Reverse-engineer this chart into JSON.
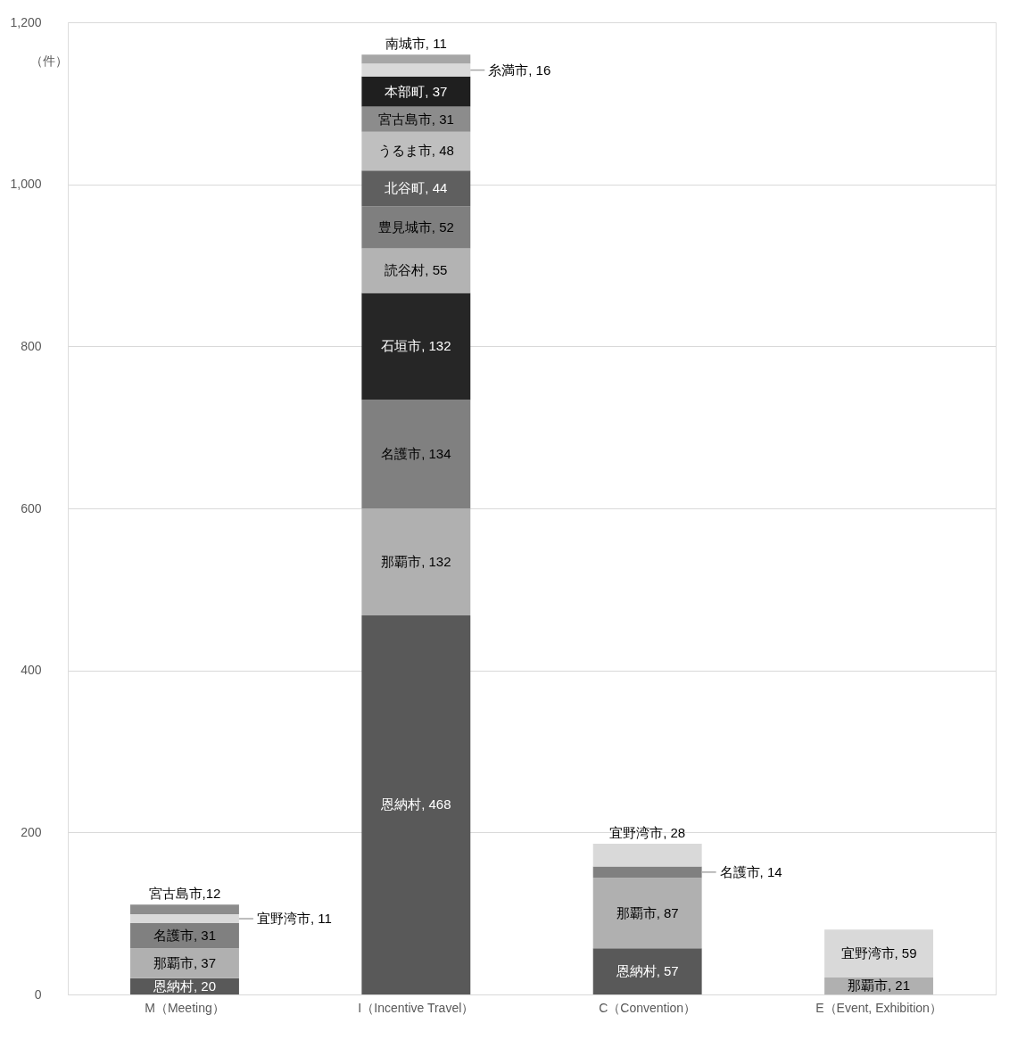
{
  "chart_data": {
    "type": "bar",
    "stacked": true,
    "ylabel": "（件）",
    "categories": [
      "M（Meeting）",
      "I（Incentive Travel）",
      "C（Convention）",
      "E（Event, Exhibition）"
    ],
    "ylim": [
      0,
      1200
    ],
    "yticks": [
      0,
      200,
      400,
      600,
      800,
      {
        "value": 1000,
        "label": "1,000"
      },
      {
        "value": 1200,
        "label": "1,200"
      }
    ],
    "grid": "y",
    "legend": false,
    "series": [
      {
        "name": "恩納村",
        "color": "#595959",
        "values": [
          20,
          468,
          57,
          null
        ],
        "value_labels": [
          ", 20",
          ", 468",
          ", 57",
          null
        ]
      },
      {
        "name": "那覇市",
        "color": "#b0b0b0",
        "values": [
          37,
          132,
          87,
          21
        ],
        "value_labels": [
          ", 37",
          ", 132",
          ", 87",
          ", 21"
        ]
      },
      {
        "name": "名護市",
        "color": "#808080",
        "values": [
          31,
          134,
          14,
          null
        ],
        "value_labels": [
          ", 31",
          ", 134",
          ", 14",
          null
        ]
      },
      {
        "name": "石垣市",
        "color": "#262626",
        "values": [
          null,
          132,
          null,
          null
        ],
        "value_labels": [
          null,
          ", 132",
          null,
          null
        ]
      },
      {
        "name": "読谷村",
        "color": "#b3b3b3",
        "values": [
          null,
          55,
          null,
          null
        ],
        "value_labels": [
          null,
          ", 55",
          null,
          null
        ]
      },
      {
        "name": "豊見城市",
        "color": "#7f7f7f",
        "values": [
          null,
          52,
          null,
          null
        ],
        "value_labels": [
          null,
          ", 52",
          null,
          null
        ]
      },
      {
        "name": "北谷町",
        "color": "#5f5f5f",
        "values": [
          null,
          44,
          null,
          null
        ],
        "value_labels": [
          null,
          ", 44",
          null,
          null
        ]
      },
      {
        "name": "うるま市",
        "color": "#bfbfbf",
        "values": [
          null,
          48,
          null,
          null
        ],
        "value_labels": [
          null,
          ", 48",
          null,
          null
        ]
      },
      {
        "name": "宜野湾市",
        "color": "#d9d9d9",
        "values": [
          11,
          null,
          28,
          59
        ],
        "value_labels": [
          ", 11",
          null,
          ", 28",
          ", 59"
        ]
      },
      {
        "name": "宮古島市",
        "color": "#8c8c8c",
        "values": [
          12,
          31,
          null,
          null
        ],
        "value_labels": [
          ",12",
          ", 31",
          null,
          null
        ]
      },
      {
        "name": "本部町",
        "color": "#1f1f1f",
        "values": [
          null,
          37,
          null,
          null
        ],
        "value_labels": [
          null,
          ", 37",
          null,
          null
        ]
      },
      {
        "name": "糸満市",
        "color": "#d9d9d9",
        "values": [
          null,
          16,
          null,
          null
        ],
        "value_labels": [
          null,
          ", 16",
          null,
          null
        ]
      },
      {
        "name": "南城市",
        "color": "#a6a6a6",
        "values": [
          null,
          11,
          null,
          null
        ],
        "value_labels": [
          null,
          ", 11",
          null,
          null
        ]
      }
    ]
  }
}
